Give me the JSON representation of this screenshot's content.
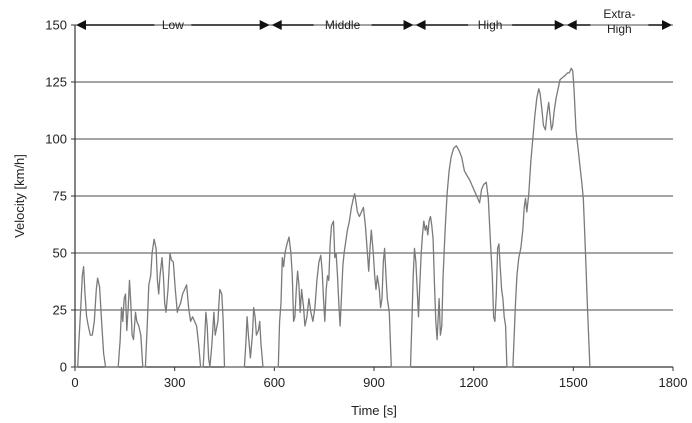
{
  "chart_data": {
    "type": "line",
    "title": "",
    "xlabel": "Time [s]",
    "ylabel": "Velocity [km/h]",
    "xlim": [
      0,
      1800
    ],
    "ylim": [
      0,
      150
    ],
    "x_ticks": [
      "0",
      "300",
      "600",
      "900",
      "1200",
      "1500",
      "1800"
    ],
    "y_ticks": [
      "0",
      "25",
      "50",
      "75",
      "100",
      "125",
      "150"
    ],
    "grid": "horizontal",
    "phases": [
      {
        "label_lines": [
          "Low"
        ],
        "start": 0,
        "end": 589
      },
      {
        "label_lines": [
          "Middle"
        ],
        "start": 589,
        "end": 1022
      },
      {
        "label_lines": [
          "High"
        ],
        "start": 1022,
        "end": 1477
      },
      {
        "label_lines": [
          "Extra-",
          "High"
        ],
        "start": 1477,
        "end": 1800
      }
    ],
    "series": [
      {
        "color": "#7a7a7a",
        "points": [
          [
            0,
            0
          ],
          [
            8,
            0
          ],
          [
            12,
            12
          ],
          [
            18,
            28
          ],
          [
            22,
            40
          ],
          [
            26,
            44
          ],
          [
            30,
            32
          ],
          [
            35,
            22
          ],
          [
            40,
            18
          ],
          [
            46,
            14
          ],
          [
            52,
            14
          ],
          [
            58,
            20
          ],
          [
            64,
            34
          ],
          [
            68,
            39
          ],
          [
            74,
            35
          ],
          [
            80,
            20
          ],
          [
            86,
            6
          ],
          [
            92,
            0
          ],
          [
            130,
            0
          ],
          [
            136,
            12
          ],
          [
            140,
            26
          ],
          [
            144,
            20
          ],
          [
            148,
            30
          ],
          [
            152,
            32
          ],
          [
            156,
            16
          ],
          [
            160,
            26
          ],
          [
            164,
            38
          ],
          [
            168,
            28
          ],
          [
            172,
            14
          ],
          [
            176,
            12
          ],
          [
            182,
            24
          ],
          [
            186,
            20
          ],
          [
            192,
            18
          ],
          [
            198,
            14
          ],
          [
            204,
            0
          ],
          [
            212,
            0
          ],
          [
            218,
            20
          ],
          [
            222,
            36
          ],
          [
            228,
            40
          ],
          [
            232,
            50
          ],
          [
            238,
            56
          ],
          [
            244,
            52
          ],
          [
            248,
            38
          ],
          [
            252,
            32
          ],
          [
            256,
            40
          ],
          [
            262,
            48
          ],
          [
            266,
            40
          ],
          [
            270,
            28
          ],
          [
            274,
            24
          ],
          [
            280,
            34
          ],
          [
            286,
            50
          ],
          [
            290,
            47
          ],
          [
            296,
            46
          ],
          [
            302,
            34
          ],
          [
            308,
            24
          ],
          [
            312,
            26
          ],
          [
            318,
            28
          ],
          [
            324,
            32
          ],
          [
            330,
            34
          ],
          [
            336,
            36
          ],
          [
            342,
            26
          ],
          [
            348,
            20
          ],
          [
            354,
            22
          ],
          [
            360,
            20
          ],
          [
            366,
            18
          ],
          [
            372,
            10
          ],
          [
            378,
            0
          ],
          [
            386,
            0
          ],
          [
            390,
            12
          ],
          [
            394,
            24
          ],
          [
            398,
            18
          ],
          [
            402,
            4
          ],
          [
            406,
            0
          ],
          [
            412,
            10
          ],
          [
            418,
            24
          ],
          [
            422,
            14
          ],
          [
            430,
            20
          ],
          [
            436,
            34
          ],
          [
            442,
            32
          ],
          [
            446,
            20
          ],
          [
            450,
            0
          ],
          [
            510,
            0
          ],
          [
            514,
            10
          ],
          [
            518,
            22
          ],
          [
            522,
            14
          ],
          [
            528,
            4
          ],
          [
            534,
            14
          ],
          [
            538,
            26
          ],
          [
            542,
            22
          ],
          [
            546,
            14
          ],
          [
            552,
            16
          ],
          [
            556,
            20
          ],
          [
            560,
            10
          ],
          [
            566,
            0
          ],
          [
            612,
            0
          ],
          [
            616,
            20
          ],
          [
            620,
            28
          ],
          [
            624,
            48
          ],
          [
            628,
            44
          ],
          [
            632,
            50
          ],
          [
            638,
            54
          ],
          [
            644,
            57
          ],
          [
            650,
            50
          ],
          [
            654,
            40
          ],
          [
            658,
            20
          ],
          [
            662,
            22
          ],
          [
            666,
            34
          ],
          [
            670,
            42
          ],
          [
            674,
            36
          ],
          [
            678,
            24
          ],
          [
            682,
            34
          ],
          [
            688,
            26
          ],
          [
            692,
            18
          ],
          [
            698,
            22
          ],
          [
            704,
            30
          ],
          [
            710,
            24
          ],
          [
            716,
            20
          ],
          [
            722,
            26
          ],
          [
            728,
            38
          ],
          [
            734,
            46
          ],
          [
            740,
            49
          ],
          [
            744,
            42
          ],
          [
            748,
            30
          ],
          [
            752,
            20
          ],
          [
            756,
            34
          ],
          [
            760,
            40
          ],
          [
            764,
            38
          ],
          [
            768,
            54
          ],
          [
            772,
            62
          ],
          [
            778,
            64
          ],
          [
            782,
            48
          ],
          [
            786,
            50
          ],
          [
            790,
            40
          ],
          [
            794,
            28
          ],
          [
            798,
            18
          ],
          [
            802,
            30
          ],
          [
            806,
            44
          ],
          [
            810,
            50
          ],
          [
            814,
            54
          ],
          [
            820,
            60
          ],
          [
            826,
            64
          ],
          [
            832,
            70
          ],
          [
            838,
            74
          ],
          [
            842,
            76
          ],
          [
            846,
            72
          ],
          [
            850,
            68
          ],
          [
            856,
            66
          ],
          [
            862,
            68
          ],
          [
            868,
            70
          ],
          [
            874,
            62
          ],
          [
            880,
            50
          ],
          [
            884,
            42
          ],
          [
            888,
            52
          ],
          [
            892,
            60
          ],
          [
            898,
            50
          ],
          [
            902,
            40
          ],
          [
            906,
            34
          ],
          [
            910,
            40
          ],
          [
            916,
            34
          ],
          [
            920,
            26
          ],
          [
            924,
            30
          ],
          [
            928,
            46
          ],
          [
            932,
            52
          ],
          [
            936,
            40
          ],
          [
            940,
            30
          ],
          [
            946,
            24
          ],
          [
            952,
            0
          ],
          [
            1010,
            0
          ],
          [
            1014,
            20
          ],
          [
            1018,
            40
          ],
          [
            1022,
            52
          ],
          [
            1026,
            46
          ],
          [
            1030,
            34
          ],
          [
            1034,
            22
          ],
          [
            1038,
            36
          ],
          [
            1042,
            50
          ],
          [
            1046,
            58
          ],
          [
            1050,
            64
          ],
          [
            1054,
            60
          ],
          [
            1058,
            62
          ],
          [
            1062,
            58
          ],
          [
            1066,
            64
          ],
          [
            1070,
            66
          ],
          [
            1074,
            62
          ],
          [
            1078,
            56
          ],
          [
            1082,
            36
          ],
          [
            1086,
            20
          ],
          [
            1090,
            12
          ],
          [
            1096,
            30
          ],
          [
            1100,
            14
          ],
          [
            1104,
            18
          ],
          [
            1108,
            40
          ],
          [
            1114,
            60
          ],
          [
            1120,
            76
          ],
          [
            1126,
            86
          ],
          [
            1132,
            92
          ],
          [
            1140,
            96
          ],
          [
            1148,
            97
          ],
          [
            1156,
            95
          ],
          [
            1164,
            92
          ],
          [
            1172,
            86
          ],
          [
            1180,
            84
          ],
          [
            1188,
            82
          ],
          [
            1194,
            80
          ],
          [
            1200,
            78
          ],
          [
            1206,
            76
          ],
          [
            1212,
            74
          ],
          [
            1218,
            72
          ],
          [
            1224,
            78
          ],
          [
            1230,
            80
          ],
          [
            1238,
            81
          ],
          [
            1244,
            74
          ],
          [
            1250,
            56
          ],
          [
            1256,
            40
          ],
          [
            1260,
            22
          ],
          [
            1264,
            20
          ],
          [
            1268,
            32
          ],
          [
            1272,
            52
          ],
          [
            1276,
            54
          ],
          [
            1280,
            44
          ],
          [
            1284,
            34
          ],
          [
            1288,
            30
          ],
          [
            1292,
            22
          ],
          [
            1296,
            18
          ],
          [
            1300,
            0
          ],
          [
            1318,
            0
          ],
          [
            1322,
            14
          ],
          [
            1326,
            28
          ],
          [
            1330,
            40
          ],
          [
            1336,
            48
          ],
          [
            1342,
            52
          ],
          [
            1348,
            60
          ],
          [
            1352,
            70
          ],
          [
            1356,
            74
          ],
          [
            1360,
            68
          ],
          [
            1366,
            76
          ],
          [
            1372,
            90
          ],
          [
            1378,
            100
          ],
          [
            1384,
            110
          ],
          [
            1390,
            118
          ],
          [
            1396,
            122
          ],
          [
            1400,
            120
          ],
          [
            1406,
            112
          ],
          [
            1410,
            106
          ],
          [
            1416,
            104
          ],
          [
            1420,
            110
          ],
          [
            1426,
            116
          ],
          [
            1430,
            110
          ],
          [
            1434,
            104
          ],
          [
            1438,
            106
          ],
          [
            1442,
            112
          ],
          [
            1448,
            118
          ],
          [
            1454,
            122
          ],
          [
            1460,
            126
          ],
          [
            1468,
            127
          ],
          [
            1476,
            128
          ],
          [
            1482,
            129
          ],
          [
            1488,
            129
          ],
          [
            1494,
            131
          ],
          [
            1498,
            130
          ],
          [
            1502,
            122
          ],
          [
            1508,
            104
          ],
          [
            1514,
            96
          ],
          [
            1520,
            88
          ],
          [
            1526,
            80
          ],
          [
            1530,
            74
          ],
          [
            1534,
            60
          ],
          [
            1538,
            44
          ],
          [
            1542,
            28
          ],
          [
            1546,
            14
          ],
          [
            1550,
            0
          ]
        ]
      }
    ]
  }
}
